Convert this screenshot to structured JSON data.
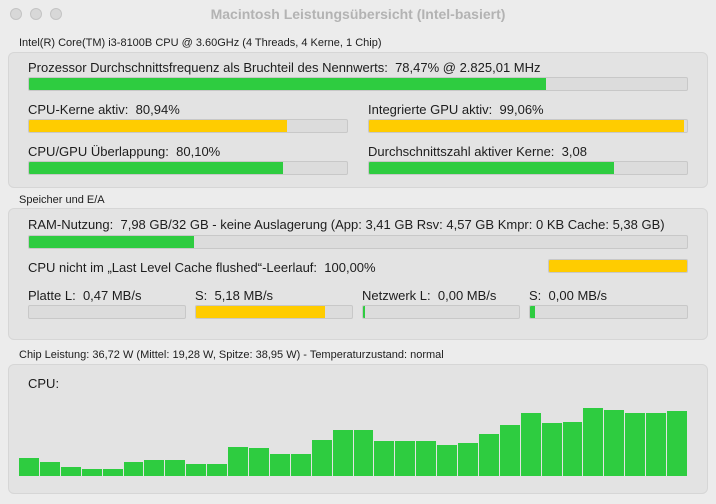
{
  "window": {
    "title": "Macintosh Leistungsübersicht (Intel-basiert)"
  },
  "cpu_section": {
    "header": "Intel(R) Core(TM) i3-8100B CPU @ 3.60GHz (4 Threads, 4 Kerne, 1 Chip)",
    "freq_label": "Prozessor Durchschnittsfrequenz als Bruchteil des Nennwerts:",
    "freq_value": "78,47% @ 2.825,01 MHz",
    "freq_level": 0.785,
    "cores_label": "CPU-Kerne aktiv:",
    "cores_value": "80,94%",
    "cores_level": 0.81,
    "gpu_label": "Integrierte GPU aktiv:",
    "gpu_value": "99,06%",
    "gpu_level": 0.99,
    "overlap_label": "CPU/GPU Überlappung:",
    "overlap_value": "80,10%",
    "overlap_level": 0.8,
    "avgcores_label": "Durchschnittszahl aktiver Kerne:",
    "avgcores_value": "3,08",
    "avgcores_level": 0.77
  },
  "memory_section": {
    "header": "Speicher und E/A",
    "ram_label": "RAM-Nutzung:",
    "ram_value": "7,98 GB/32 GB - keine Auslagerung (App: 3,41 GB Rsv: 4,57 GB Kmpr: 0 KB Cache: 5,38 GB)",
    "ram_level": 0.25,
    "llc_label": "CPU nicht im „Last Level Cache flushed“-Leerlauf:",
    "llc_value": "100,00%",
    "llc_level": 1.0,
    "disk_read_label": "Platte L:",
    "disk_read_value": "0,47 MB/s",
    "disk_read_level": 0.0,
    "disk_write_label": "S:",
    "disk_write_value": "5,18 MB/s",
    "disk_write_level": 0.83,
    "net_read_label": "Netzwerk L:",
    "net_read_value": "0,00 MB/s",
    "net_read_level": 0.01,
    "net_write_label": "S:",
    "net_write_value": "0,00 MB/s",
    "net_write_level": 0.03
  },
  "power_section": {
    "header": "Chip Leistung: 36,72 W (Mittel: 19,28 W, Spitze: 38,95 W) - Temperaturzustand: normal",
    "cpu_label": "CPU:",
    "history_levels": [
      0.23,
      0.18,
      0.12,
      0.09,
      0.09,
      0.18,
      0.21,
      0.21,
      0.15,
      0.15,
      0.38,
      0.36,
      0.29,
      0.29,
      0.47,
      0.6,
      0.6,
      0.46,
      0.46,
      0.45,
      0.4,
      0.43,
      0.55,
      0.66,
      0.82,
      0.69,
      0.7,
      0.88,
      0.86,
      0.82,
      0.82,
      0.85
    ]
  },
  "colors": {
    "green": "#2ecc40",
    "yellow": "#ffcc00"
  }
}
